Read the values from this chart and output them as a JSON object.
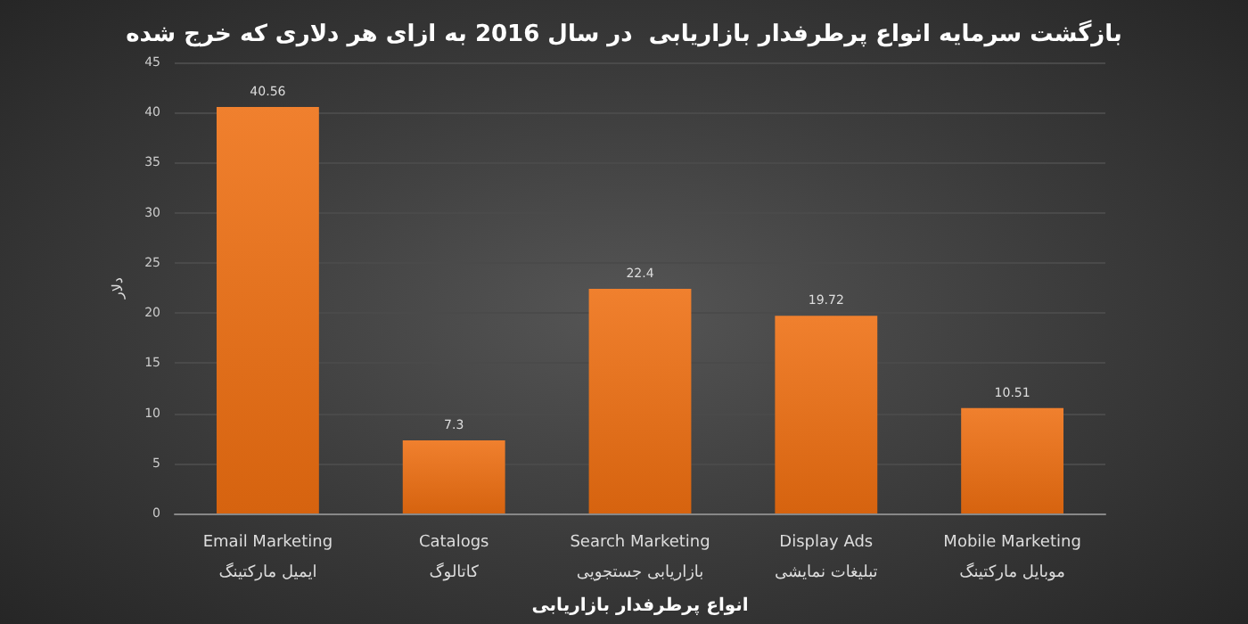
{
  "chart_data": {
    "type": "bar",
    "title": "بازگشت سرمایه انواع پرطرفدار بازاریابی  در سال 2016 به ازای هر دلاری که خرج شده",
    "xlabel": "انواع پرطرفدار بازاریابی",
    "ylabel": "دلار",
    "categories": [
      "Email Marketing\nایمیل مارکتینگ",
      "Catalogs\nکاتالوگ",
      "Search Marketing\nبازاریابی جستجویی",
      "Display Ads\nتبلیغات نمایشی",
      "Mobile Marketing\nموبایل مارکتینگ"
    ],
    "values": [
      40.56,
      7.3,
      22.4,
      19.72,
      10.51
    ],
    "color": "#f0802e",
    "ylim": [
      0,
      45
    ],
    "yticks": [
      0,
      5,
      10,
      15,
      20,
      25,
      30,
      35,
      40,
      45
    ],
    "grid": "y",
    "data_labels": true
  }
}
